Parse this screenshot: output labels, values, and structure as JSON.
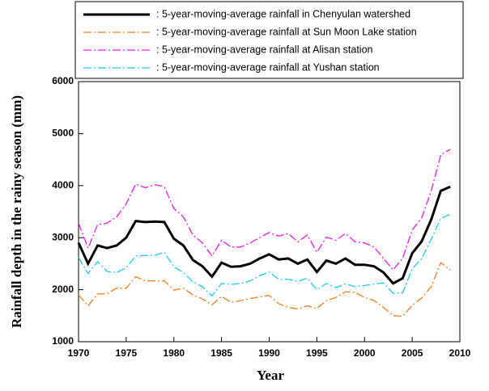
{
  "chart_data": {
    "type": "line",
    "x_label": "Year",
    "y_label": "Rainfall depth in the rainy season (mm)",
    "x": [
      1970,
      1971,
      1972,
      1973,
      1974,
      1975,
      1976,
      1977,
      1978,
      1979,
      1980,
      1981,
      1982,
      1983,
      1984,
      1985,
      1986,
      1987,
      1988,
      1989,
      1990,
      1991,
      1992,
      1993,
      1994,
      1995,
      1996,
      1997,
      1998,
      1999,
      2000,
      2001,
      2002,
      2003,
      2004,
      2005,
      2006,
      2007,
      2008,
      2009
    ],
    "series": [
      {
        "name": ":  5-year-moving-average rainfall in Chenyulan watershed",
        "color": "#000000",
        "style": "solid",
        "values": [
          2900,
          2500,
          2850,
          2800,
          2850,
          3000,
          3320,
          3300,
          3310,
          3300,
          2980,
          2850,
          2570,
          2450,
          2250,
          2520,
          2440,
          2450,
          2500,
          2600,
          2680,
          2580,
          2600,
          2500,
          2580,
          2340,
          2560,
          2500,
          2600,
          2480,
          2480,
          2450,
          2330,
          2120,
          2220,
          2700,
          2930,
          3350,
          3900,
          3980
        ]
      },
      {
        "name": ":  5-year-moving-average rainfall at Sun Moon Lake station",
        "color": "#f07f1e",
        "style": "dashdot",
        "values": [
          1900,
          1690,
          1920,
          1920,
          2030,
          2030,
          2250,
          2170,
          2170,
          2170,
          1990,
          2030,
          1900,
          1820,
          1710,
          1870,
          1760,
          1790,
          1830,
          1860,
          1890,
          1730,
          1660,
          1630,
          1690,
          1640,
          1790,
          1850,
          1960,
          1950,
          1850,
          1790,
          1660,
          1500,
          1490,
          1700,
          1840,
          2060,
          2520,
          2380
        ]
      },
      {
        "name": ":  5-year-moving-average rainfall at  Alisan station",
        "color": "#e61ee6",
        "style": "dashdot",
        "values": [
          3280,
          2800,
          3250,
          3280,
          3400,
          3650,
          4030,
          3960,
          4020,
          3980,
          3560,
          3400,
          3050,
          2900,
          2650,
          2950,
          2820,
          2820,
          2900,
          3000,
          3100,
          3030,
          3080,
          2920,
          3050,
          2720,
          3010,
          2950,
          3080,
          2920,
          2900,
          2820,
          2600,
          2380,
          2600,
          3150,
          3380,
          3900,
          4590,
          4700
        ]
      },
      {
        "name": ":  5-year-moving-average rainfall at  Yushan station",
        "color": "#1ec8f0",
        "style": "dashdot",
        "values": [
          2620,
          2310,
          2540,
          2350,
          2330,
          2420,
          2650,
          2660,
          2660,
          2720,
          2440,
          2330,
          2150,
          2060,
          1880,
          2120,
          2100,
          2120,
          2170,
          2270,
          2340,
          2200,
          2200,
          2160,
          2220,
          2000,
          2120,
          2040,
          2110,
          2060,
          2080,
          2110,
          2130,
          1930,
          1940,
          2400,
          2600,
          2970,
          3370,
          3450
        ]
      }
    ],
    "xlim": [
      1970,
      2010
    ],
    "xticks": [
      1970,
      1975,
      1980,
      1985,
      1990,
      1995,
      2000,
      2005,
      2010
    ],
    "ylim": [
      1000,
      6000
    ],
    "yticks": [
      1000,
      2000,
      3000,
      4000,
      5000,
      6000
    ]
  }
}
